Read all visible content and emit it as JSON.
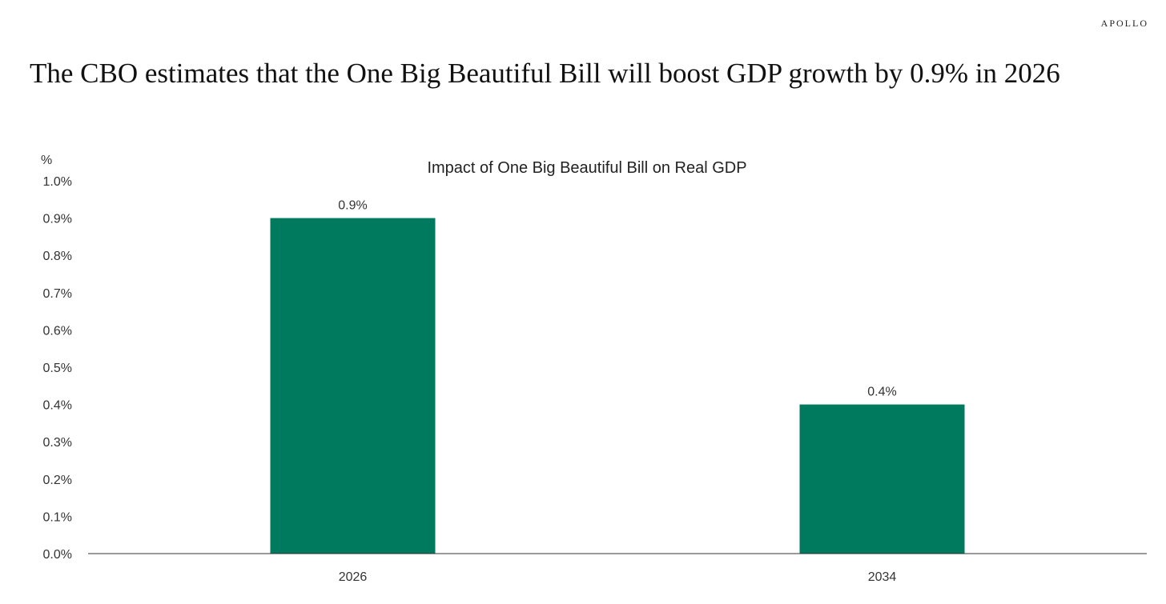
{
  "brand": "APOLLO",
  "headline": "The CBO estimates that the One Big Beautiful Bill will boost GDP growth by 0.9% in 2026",
  "colors": {
    "bar": "#007A5E",
    "axis": "#333333"
  },
  "chart_data": {
    "type": "bar",
    "title": "Impact of One Big Beautiful Bill on Real GDP",
    "ylabel": "%",
    "xlabel": "",
    "categories": [
      "2026",
      "2034"
    ],
    "values": [
      0.9,
      0.4
    ],
    "data_labels": [
      "0.9%",
      "0.4%"
    ],
    "ylim": [
      0,
      1.0
    ],
    "yticks": [
      0.0,
      0.1,
      0.2,
      0.3,
      0.4,
      0.5,
      0.6,
      0.7,
      0.8,
      0.9,
      1.0
    ],
    "ytick_labels": [
      "0.0%",
      "0.1%",
      "0.2%",
      "0.3%",
      "0.4%",
      "0.5%",
      "0.6%",
      "0.7%",
      "0.8%",
      "0.9%",
      "1.0%"
    ],
    "grid": false,
    "legend": false
  }
}
